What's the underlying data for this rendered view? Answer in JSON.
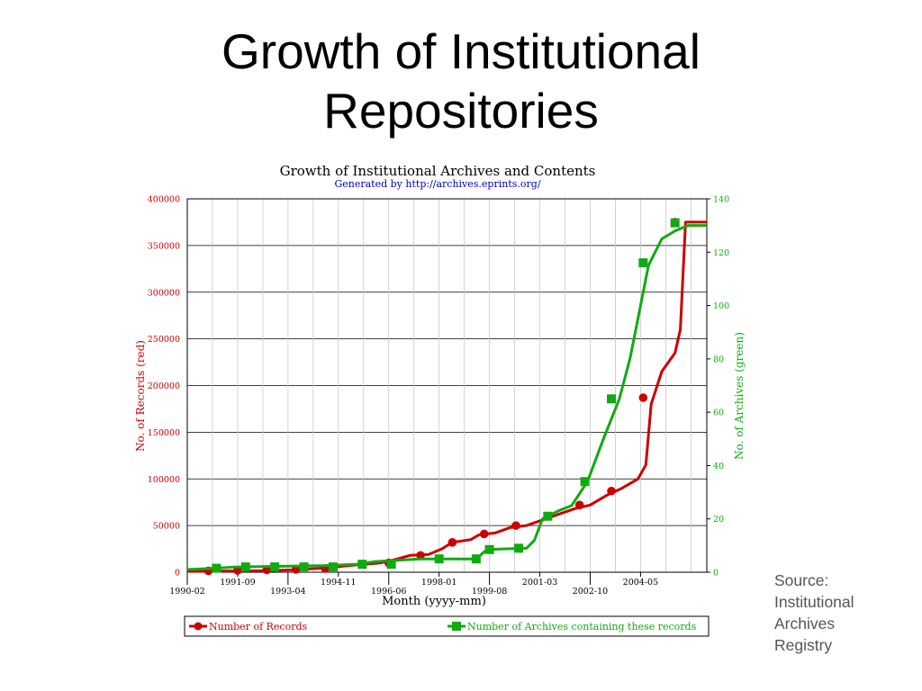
{
  "slide": {
    "title_line1": "Growth of Institutional",
    "title_line2": "Repositories",
    "source_lines": [
      "Source:",
      "Institutional",
      "Archives",
      "Registry"
    ]
  },
  "colors": {
    "records": "#cc0000",
    "archives": "#11aa11",
    "subtitle": "#0000cc",
    "grid": "#c8c8c8"
  },
  "chart_data": {
    "type": "line",
    "title": "Growth of Institutional Archives and Contents",
    "subtitle": "Generated by http://archives.eprints.org/",
    "xlabel": "Month (yyyy-mm)",
    "ylabel_left": "No. of Records (red)",
    "ylabel_right": "No. of Archives (green)",
    "x_range": [
      "1990-02",
      "2006-06"
    ],
    "x_ticks_lower": [
      "1990-02",
      "1993-04",
      "1996-06",
      "1999-08",
      "2002-10"
    ],
    "x_ticks_upper": [
      "1991-09",
      "1994-11",
      "1998-01",
      "2001-03",
      "2004-05"
    ],
    "ylim_left": [
      0,
      400000
    ],
    "yticks_left": [
      0,
      50000,
      100000,
      150000,
      200000,
      250000,
      300000,
      350000,
      400000
    ],
    "ylim_right": [
      0,
      140
    ],
    "yticks_right": [
      0,
      20,
      40,
      60,
      80,
      100,
      120,
      140
    ],
    "grid": true,
    "legend_position": "bottom",
    "series": [
      {
        "name": "Number of Records",
        "axis": "left",
        "line": [
          [
            "1990-02",
            1000
          ],
          [
            "1992-06",
            1500
          ],
          [
            "1993-06",
            2500
          ],
          [
            "1994-06",
            4500
          ],
          [
            "1995-06",
            8000
          ],
          [
            "1996-03",
            10000
          ],
          [
            "1996-09",
            14000
          ],
          [
            "1997-02",
            18000
          ],
          [
            "1997-09",
            19000
          ],
          [
            "1998-02",
            25000
          ],
          [
            "1998-06",
            32000
          ],
          [
            "1999-01",
            35000
          ],
          [
            "1999-04",
            40000
          ],
          [
            "1999-10",
            42000
          ],
          [
            "2000-04",
            48000
          ],
          [
            "2000-10",
            50000
          ],
          [
            "2001-04",
            56000
          ],
          [
            "2001-10",
            62000
          ],
          [
            "2002-04",
            68000
          ],
          [
            "2002-10",
            72000
          ],
          [
            "2003-04",
            82000
          ],
          [
            "2003-10",
            90000
          ],
          [
            "2004-04",
            100000
          ],
          [
            "2004-07",
            115000
          ],
          [
            "2004-09",
            180000
          ],
          [
            "2005-01",
            215000
          ],
          [
            "2005-06",
            235000
          ],
          [
            "2005-08",
            260000
          ],
          [
            "2005-10",
            375000
          ],
          [
            "2006-06",
            375000
          ]
        ],
        "markers": [
          [
            "1990-10",
            1500
          ],
          [
            "1991-09",
            2000
          ],
          [
            "1992-08",
            2500
          ],
          [
            "1993-07",
            3000
          ],
          [
            "1994-06",
            4000
          ],
          [
            "1996-06",
            10000
          ],
          [
            "1997-06",
            18000
          ],
          [
            "1998-06",
            32000
          ],
          [
            "1999-06",
            41000
          ],
          [
            "2000-06",
            50000
          ],
          [
            "2002-06",
            72000
          ],
          [
            "2003-06",
            87000
          ],
          [
            "2004-06",
            187000
          ],
          [
            "2005-06",
            375000
          ]
        ]
      },
      {
        "name": "Number of Archives containing these records",
        "axis": "right",
        "line": [
          [
            "1990-02",
            1
          ],
          [
            "1990-12",
            1.5
          ],
          [
            "1991-09",
            2
          ],
          [
            "1994-06",
            2.5
          ],
          [
            "1995-06",
            3
          ],
          [
            "1996-01",
            4
          ],
          [
            "1997-06",
            5
          ],
          [
            "1999-03",
            5
          ],
          [
            "1999-07",
            8.5
          ],
          [
            "2000-10",
            9
          ],
          [
            "2001-01",
            12
          ],
          [
            "2001-04",
            20
          ],
          [
            "2001-10",
            23
          ],
          [
            "2002-03",
            25
          ],
          [
            "2002-09",
            34
          ],
          [
            "2003-03",
            50
          ],
          [
            "2003-09",
            65
          ],
          [
            "2004-01",
            80
          ],
          [
            "2004-04",
            95
          ],
          [
            "2004-08",
            115
          ],
          [
            "2005-01",
            125
          ],
          [
            "2005-06",
            128
          ],
          [
            "2005-11",
            130
          ],
          [
            "2006-06",
            130
          ]
        ],
        "markers": [
          [
            "1991-01",
            1.5
          ],
          [
            "1991-12",
            2
          ],
          [
            "1992-11",
            2
          ],
          [
            "1993-10",
            2
          ],
          [
            "1994-09",
            2
          ],
          [
            "1995-08",
            3
          ],
          [
            "1996-07",
            3
          ],
          [
            "1998-01",
            5
          ],
          [
            "1999-03",
            5
          ],
          [
            "1999-08",
            8.5
          ],
          [
            "2000-07",
            9
          ],
          [
            "2001-06",
            21
          ],
          [
            "2002-08",
            34
          ],
          [
            "2003-06",
            65
          ],
          [
            "2004-06",
            116
          ],
          [
            "2005-06",
            131
          ]
        ]
      }
    ]
  }
}
